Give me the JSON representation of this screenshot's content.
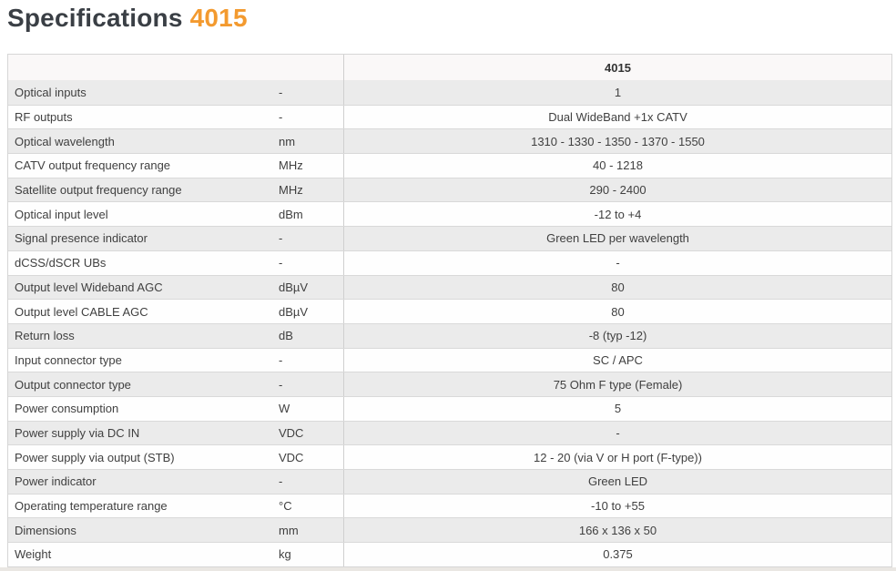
{
  "page": {
    "title": "Specifications",
    "title_accent": "4015",
    "colors": {
      "accent_orange": "#f39a2f",
      "title_dark": "#3a3f45",
      "row_alt_gray": "#ebebeb",
      "header_row_bg": "#faf8f8",
      "border_gray": "#d9d9d9",
      "text_gray": "#404040"
    }
  },
  "table": {
    "value_header": "4015",
    "rows": [
      {
        "label": "Optical inputs",
        "unit": "-",
        "value": "1"
      },
      {
        "label": "RF outputs",
        "unit": "-",
        "value": "Dual WideBand +1x CATV"
      },
      {
        "label": "Optical wavelength",
        "unit": "nm",
        "value": "1310 - 1330 - 1350 - 1370 - 1550"
      },
      {
        "label": "CATV output frequency range",
        "unit": "MHz",
        "value": "40 - 1218"
      },
      {
        "label": "Satellite output frequency range",
        "unit": "MHz",
        "value": "290 - 2400"
      },
      {
        "label": "Optical input level",
        "unit": "dBm",
        "value": "-12 to +4"
      },
      {
        "label": "Signal presence indicator",
        "unit": "-",
        "value": "Green LED per wavelength"
      },
      {
        "label": "dCSS/dSCR UBs",
        "unit": "-",
        "value": "-"
      },
      {
        "label": "Output level Wideband AGC",
        "unit": "dBµV",
        "value": "80"
      },
      {
        "label": "Output level CABLE AGC",
        "unit": "dBµV",
        "value": "80"
      },
      {
        "label": "Return loss",
        "unit": "dB",
        "value": "-8 (typ -12)"
      },
      {
        "label": "Input connector type",
        "unit": "-",
        "value": "SC / APC"
      },
      {
        "label": "Output connector type",
        "unit": "-",
        "value": "75 Ohm F type (Female)"
      },
      {
        "label": "Power consumption",
        "unit": "W",
        "value": "5"
      },
      {
        "label": "Power supply via DC IN",
        "unit": "VDC",
        "value": "-"
      },
      {
        "label": "Power supply via output (STB)",
        "unit": "VDC",
        "value": "12 - 20 (via V or H port (F-type))"
      },
      {
        "label": "Power indicator",
        "unit": "-",
        "value": "Green LED"
      },
      {
        "label": "Operating temperature range",
        "unit": "°C",
        "value": "-10 to +55"
      },
      {
        "label": "Dimensions",
        "unit": "mm",
        "value": "166 x 136 x 50"
      },
      {
        "label": "Weight",
        "unit": "kg",
        "value": "0.375"
      }
    ]
  }
}
